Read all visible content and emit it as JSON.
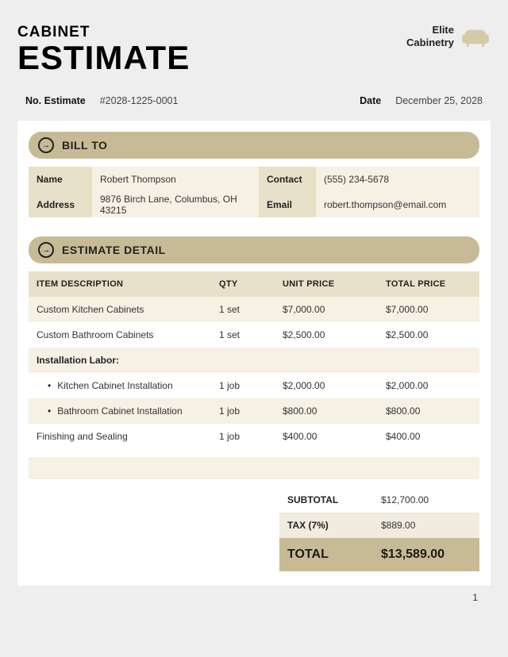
{
  "header": {
    "line1": "CABINET",
    "line2": "ESTIMATE",
    "company_line1": "Elite",
    "company_line2": "Cabinetry"
  },
  "meta": {
    "estimate_label": "No. Estimate",
    "estimate_value": "#2028-1225-0001",
    "date_label": "Date",
    "date_value": "December 25, 2028"
  },
  "sections": {
    "bill_to": "BILL TO",
    "detail": "ESTIMATE DETAIL"
  },
  "bill_to": {
    "name_label": "Name",
    "name": "Robert Thompson",
    "address_label": "Address",
    "address": "9876 Birch Lane, Columbus, OH 43215",
    "contact_label": "Contact",
    "contact": "(555) 234-5678",
    "email_label": "Email",
    "email": "robert.thompson@email.com"
  },
  "table": {
    "headers": {
      "desc": "ITEM DESCRIPTION",
      "qty": "QTY",
      "unit": "UNIT PRICE",
      "total": "TOTAL PRICE"
    },
    "rows": [
      {
        "desc": "Custom Kitchen Cabinets",
        "qty": "1 set",
        "unit": "$7,000.00",
        "total": "$7,000.00",
        "type": "alt"
      },
      {
        "desc": "Custom Bathroom Cabinets",
        "qty": "1 set",
        "unit": "$2,500.00",
        "total": "$2,500.00",
        "type": "white"
      },
      {
        "desc": "Installation Labor:",
        "qty": "",
        "unit": "",
        "total": "",
        "type": "alt",
        "subheader": true
      },
      {
        "desc": "Kitchen Cabinet Installation",
        "qty": "1 job",
        "unit": "$2,000.00",
        "total": "$2,000.00",
        "type": "white",
        "bullet": true
      },
      {
        "desc": "Bathroom Cabinet Installation",
        "qty": "1 job",
        "unit": "$800.00",
        "total": "$800.00",
        "type": "alt",
        "bullet": true
      },
      {
        "desc": "Finishing and Sealing",
        "qty": "1 job",
        "unit": "$400.00",
        "total": "$400.00",
        "type": "white"
      }
    ]
  },
  "totals": {
    "subtotal_label": "SUBTOTAL",
    "subtotal": "$12,700.00",
    "tax_label": "TAX (7%)",
    "tax": "$889.00",
    "total_label": "TOTAL",
    "total": "$13,589.00"
  },
  "page_number": "1",
  "colors": {
    "bar": "#c7bb96",
    "label_bg": "#e9e0c9",
    "alt_bg": "#f6f1e5",
    "icon": "#d5caa8"
  }
}
